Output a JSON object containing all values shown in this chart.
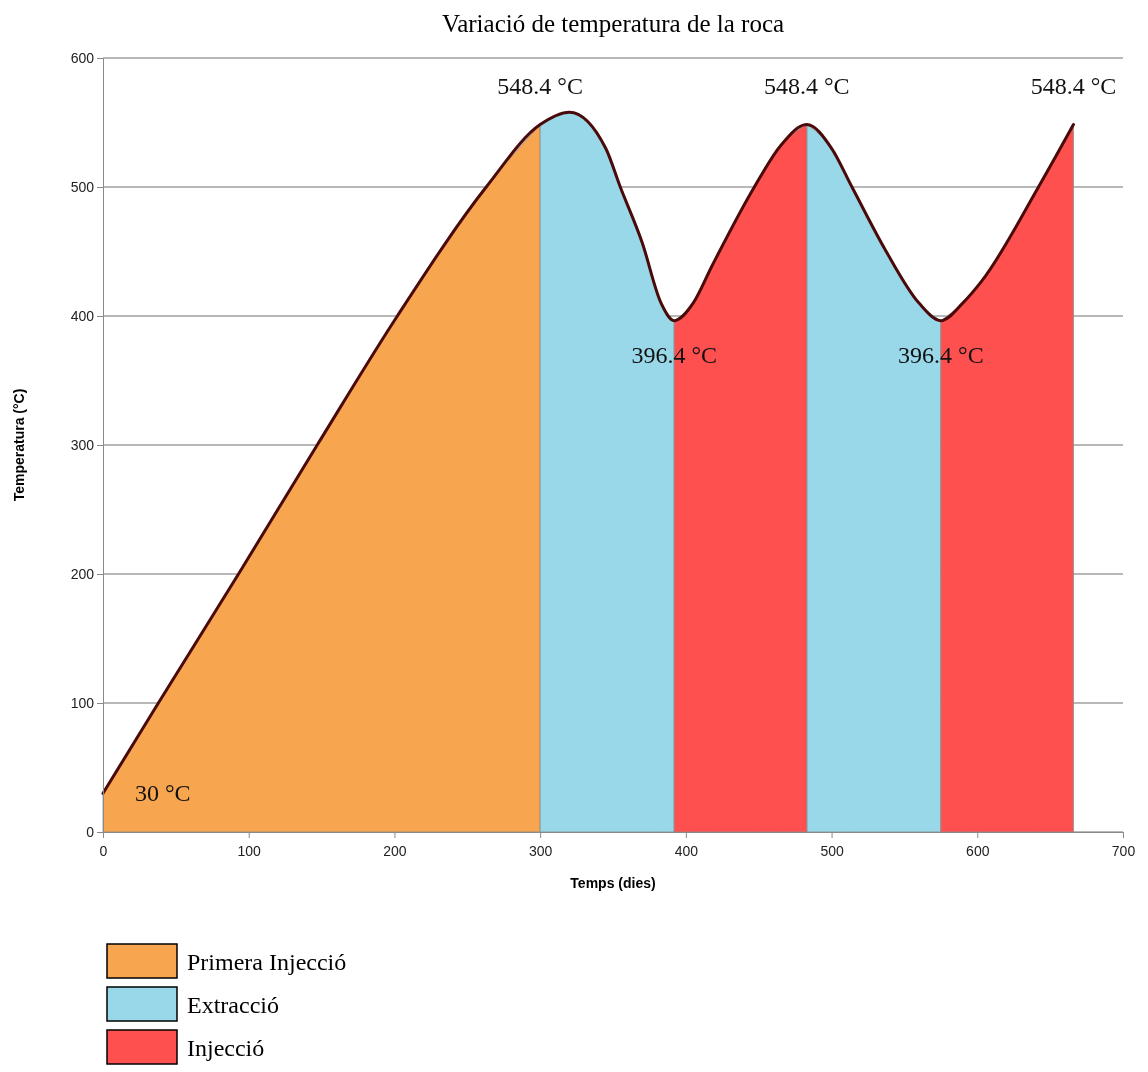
{
  "chart_data": {
    "type": "area",
    "title": "Variació de temperatura de la roca",
    "xlabel": "Temps (dies)",
    "ylabel": "Temperatura (°C)",
    "xlim": [
      0,
      700
    ],
    "xticks": [
      0,
      100,
      200,
      300,
      400,
      500,
      600,
      700
    ],
    "ylim": [
      0,
      600
    ],
    "yticks": [
      0,
      100,
      200,
      300,
      400,
      500,
      600
    ],
    "grid": "y",
    "legend": "bottom",
    "series": [
      {
        "name": "Primera Injecció",
        "color": "#f7a64f",
        "x": [
          0,
          38,
          93,
          147,
          202,
          263,
          300
        ],
        "values": [
          30,
          100,
          200,
          300,
          400,
          500,
          548.4
        ]
      },
      {
        "name": "Extracció",
        "color": "#99d8e8",
        "x": [
          300,
          320,
          345,
          355,
          370,
          383,
          392,
          437,
          483,
          500,
          514,
          537,
          560,
          575
        ],
        "values": [
          548.4,
          558,
          530,
          500,
          457,
          410,
          396.4,
          null,
          548.4,
          530,
          500,
          451,
          410,
          396.4
        ]
      },
      {
        "name": "Injecció",
        "color": "#ff5050",
        "x": [
          392,
          405,
          418,
          447,
          465,
          483,
          529,
          575,
          590,
          603,
          642,
          666
        ],
        "values": [
          396.4,
          410,
          439,
          500,
          532,
          548.4,
          null,
          396.4,
          410,
          427,
          500,
          548.4
        ]
      },
      {
        "type": "line",
        "color": "#4a0a0a",
        "x": [
          0,
          38,
          93,
          147,
          202,
          263,
          300,
          320,
          345,
          355,
          370,
          383,
          392,
          405,
          418,
          447,
          465,
          483,
          500,
          514,
          537,
          560,
          575,
          590,
          603,
          642,
          666
        ],
        "values": [
          30,
          100,
          200,
          300,
          400,
          500,
          548.4,
          558,
          530,
          500,
          457,
          410,
          396.4,
          410,
          439,
          500,
          532,
          548.4,
          530,
          500,
          451,
          410,
          396.4,
          410,
          427,
          500,
          548.4
        ]
      }
    ],
    "annotations": [
      {
        "text": "30 °C",
        "x": 0,
        "y": 30
      },
      {
        "text": "548.4 °C",
        "x": 300,
        "y": 548.4
      },
      {
        "text": "548.4 °C",
        "x": 483,
        "y": 548.4
      },
      {
        "text": "548.4 °C",
        "x": 666,
        "y": 548.4
      },
      {
        "text": "396.4 °C",
        "x": 392,
        "y": 396.4
      },
      {
        "text": "396.4 °C",
        "x": 575,
        "y": 396.4
      }
    ]
  }
}
